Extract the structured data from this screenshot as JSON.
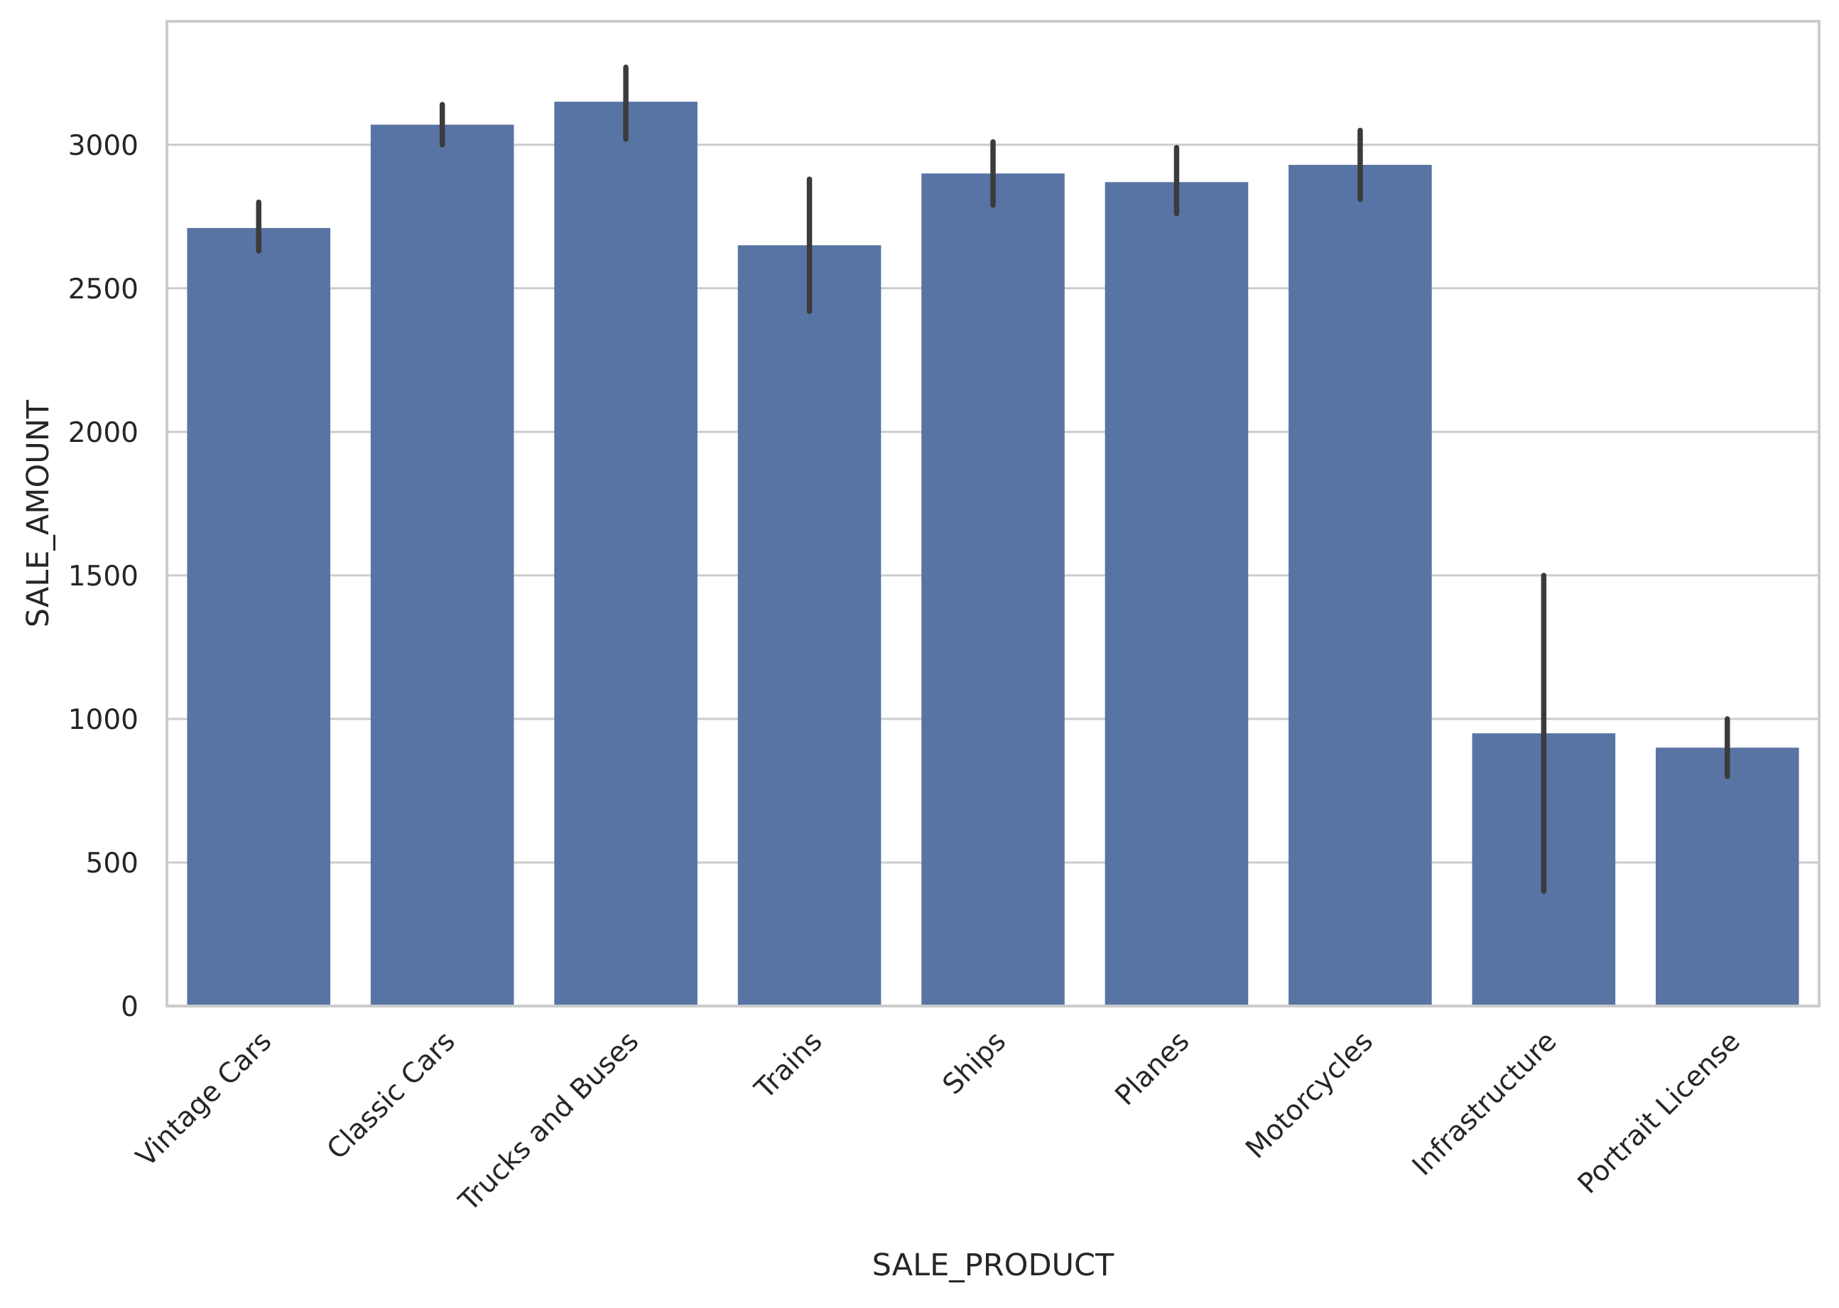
{
  "chart_data": {
    "type": "bar",
    "title": "",
    "xlabel": "SALE_PRODUCT",
    "ylabel": "SALE_AMOUNT",
    "categories": [
      "Vintage Cars",
      "Classic Cars",
      "Trucks and Buses",
      "Trains",
      "Ships",
      "Planes",
      "Motorcycles",
      "Infrastructure",
      "Portrait License"
    ],
    "values": [
      2710,
      3070,
      3150,
      2650,
      2900,
      2870,
      2930,
      950,
      900
    ],
    "error_bars": [
      {
        "low": 2630,
        "high": 2800
      },
      {
        "low": 3000,
        "high": 3140
      },
      {
        "low": 3020,
        "high": 3270
      },
      {
        "low": 2420,
        "high": 2880
      },
      {
        "low": 2790,
        "high": 3010
      },
      {
        "low": 2760,
        "high": 2990
      },
      {
        "low": 2810,
        "high": 3050
      },
      {
        "low": 400,
        "high": 1500
      },
      {
        "low": 800,
        "high": 1000
      }
    ],
    "ylim": [
      0,
      3430
    ],
    "yticks": [
      0,
      500,
      1000,
      1500,
      2000,
      2500,
      3000
    ],
    "grid": "horizontal",
    "legend": "none",
    "colors": {
      "bar": "#5874a4",
      "errorbar": "#3b3b3b",
      "grid": "#cccccc",
      "frame": "#cccccc",
      "text": "#262626"
    }
  }
}
